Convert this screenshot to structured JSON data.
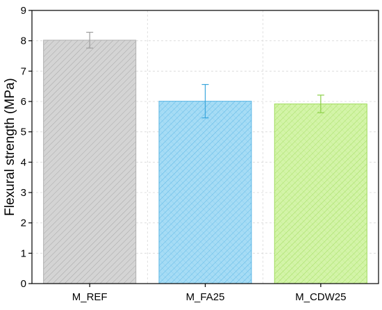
{
  "chart_data": {
    "type": "bar",
    "title": "",
    "xlabel": "",
    "ylabel": "Flexural strength (MPa)",
    "ylim": [
      0,
      9
    ],
    "yticks": [
      "0",
      "1",
      "2",
      "3",
      "4",
      "5",
      "6",
      "7",
      "8",
      "9"
    ],
    "grid": true,
    "categories": [
      "M_REF",
      "M_FA25",
      "M_CDW25"
    ],
    "values": [
      8.02,
      6.01,
      5.92
    ],
    "errors": [
      0.26,
      0.55,
      0.29
    ],
    "fill_colors": [
      "#d4d4d4",
      "#a6dcf5",
      "#d3f4a8"
    ],
    "hatch_colors": [
      "#a8a8a8",
      "#5fb8e6",
      "#a4de62"
    ],
    "edge_colors": [
      "#b0b0b0",
      "#5cb6e4",
      "#a2dc60"
    ],
    "error_colors": [
      "#9e9e9e",
      "#3aa6dc",
      "#8cd048"
    ]
  }
}
